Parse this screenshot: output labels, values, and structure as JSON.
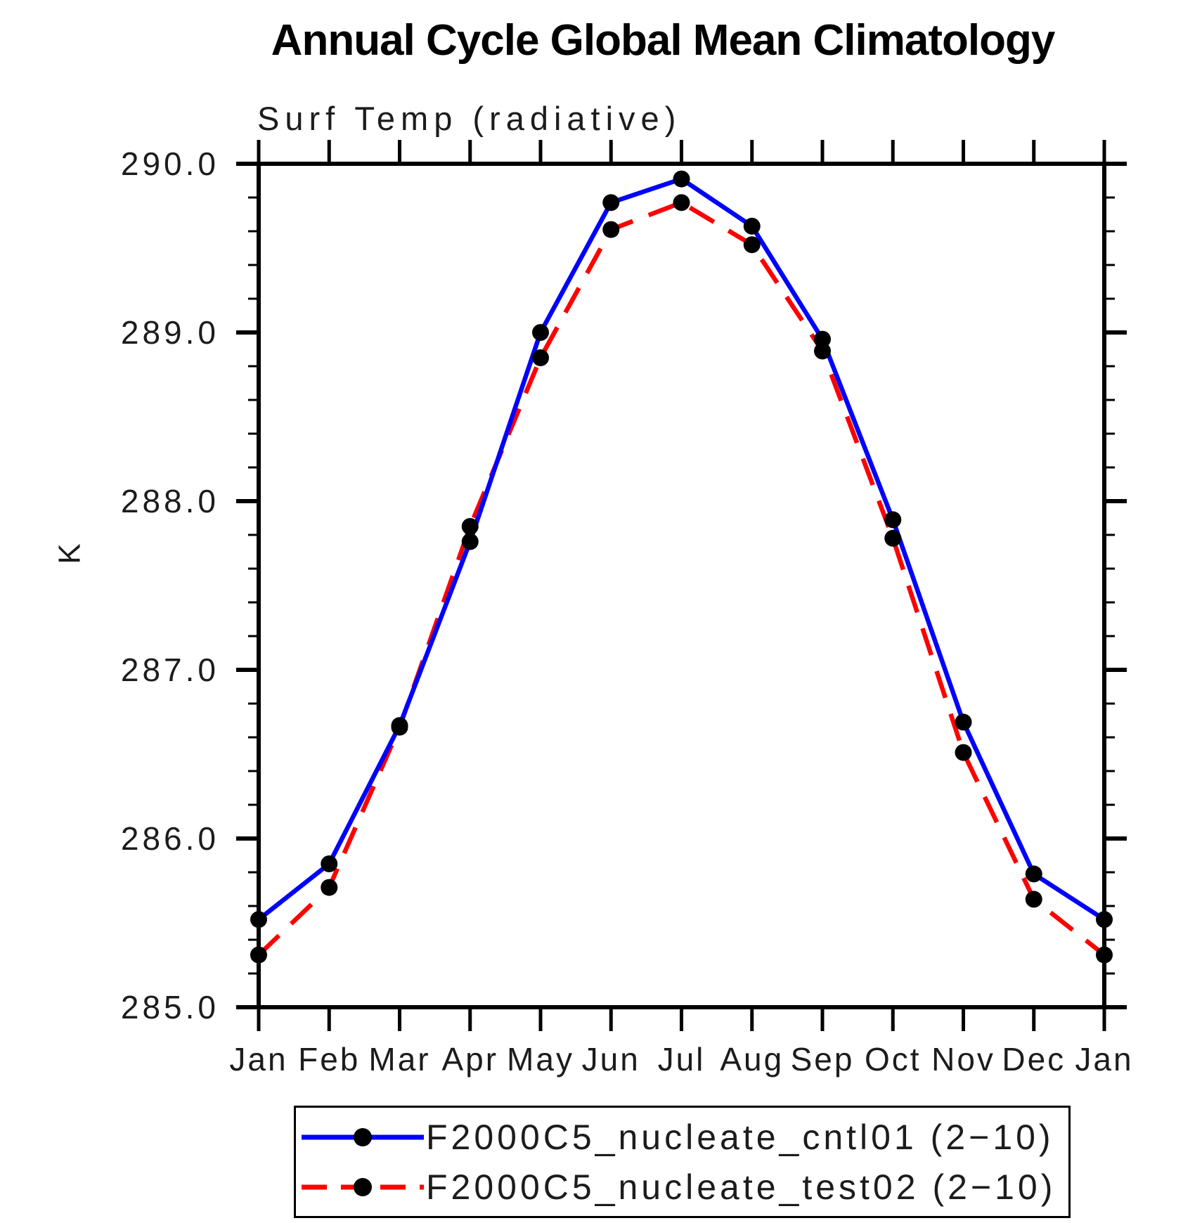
{
  "figure": {
    "title": "Annual Cycle Global Mean Climatology",
    "subtitle": "Surf Temp (radiative)",
    "ylabel": "K"
  },
  "chart_data": {
    "type": "line",
    "title": "Annual Cycle Global Mean Climatology",
    "subtitle": "Surf Temp (radiative)",
    "xlabel": "",
    "ylabel": "K",
    "categories": [
      "Jan",
      "Feb",
      "Mar",
      "Apr",
      "May",
      "Jun",
      "Jul",
      "Aug",
      "Sep",
      "Oct",
      "Nov",
      "Dec",
      "Jan"
    ],
    "ylim": [
      285.0,
      290.0
    ],
    "ytick_major_interval": 1.0,
    "ytick_minor_interval": 0.2,
    "ytick_labels": [
      "285.0",
      "286.0",
      "287.0",
      "288.0",
      "289.0",
      "290.0"
    ],
    "grid": false,
    "legend_position": "bottom",
    "axis_color": "#000000",
    "marker_color": "#000000",
    "series": [
      {
        "name": "F2000C5_nucleate_cntl01 (2−10)",
        "color": "#0000ff",
        "line_style": "solid",
        "marker": "circle",
        "values": [
          285.52,
          285.85,
          286.67,
          287.76,
          289.0,
          289.77,
          289.91,
          289.63,
          288.96,
          287.89,
          286.69,
          285.79,
          285.52
        ]
      },
      {
        "name": "F2000C5_nucleate_test02 (2−10)",
        "color": "#ff0000",
        "line_style": "dashed",
        "marker": "circle",
        "values": [
          285.31,
          285.71,
          286.66,
          287.85,
          288.85,
          289.61,
          289.77,
          289.52,
          288.89,
          287.78,
          286.51,
          285.64,
          285.31
        ]
      }
    ]
  }
}
